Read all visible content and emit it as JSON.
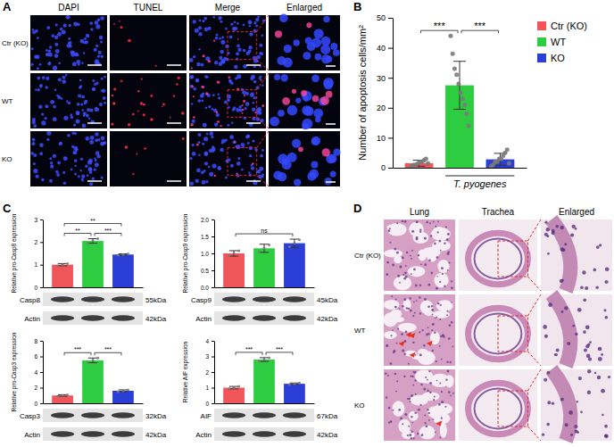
{
  "panel_labels": [
    "A",
    "B",
    "C",
    "D"
  ],
  "image_panels": {
    "A": {
      "columns": [
        "DAPI",
        "TUNEL",
        "Merge",
        "Enlarged"
      ],
      "rows": [
        "Ctr (KO)",
        "WT",
        "KO"
      ]
    },
    "D": {
      "columns": [
        "Lung",
        "Trachea",
        "Enlarged"
      ],
      "rows": [
        "Ctr (KO)",
        "WT",
        "KO"
      ]
    }
  },
  "chart_data": [
    {
      "type": "bar",
      "y_label": "Number of apoptosis cells/mm²",
      "x_label": "T. pyogenes",
      "x_label_span": [
        "WT",
        "KO"
      ],
      "categories": [
        "Ctr (KO)",
        "WT",
        "KO"
      ],
      "values": [
        1.5,
        27.5,
        2.8
      ],
      "errors": [
        1.0,
        8.0,
        2.0
      ],
      "points": [
        [
          0,
          0.5,
          1,
          1,
          1.5,
          2,
          2,
          2.5,
          3,
          1.5
        ],
        [
          44,
          38,
          33,
          31,
          28,
          25,
          23,
          21,
          18,
          14
        ],
        [
          0.5,
          1,
          2,
          2,
          3,
          3,
          4,
          5,
          6,
          1.5
        ]
      ],
      "colors": [
        "#f0555a",
        "#2ecc40",
        "#2b3fd6"
      ],
      "ylim": [
        0,
        50
      ],
      "yticks": [
        0,
        10,
        20,
        30,
        40,
        50
      ],
      "comparisons": [
        {
          "between": [
            0,
            1
          ],
          "text": "***"
        },
        {
          "between": [
            1,
            2
          ],
          "text": "***"
        }
      ],
      "legend": "right",
      "tick_labels": "y"
    },
    {
      "type": "bar",
      "y_label": "Relative pro-Casp8 expression",
      "categories": [
        null,
        null,
        null
      ],
      "values": [
        1.0,
        2.05,
        1.45
      ],
      "errors": [
        0.05,
        0.1,
        0.03
      ],
      "points": [
        [
          0.95,
          1.0,
          1.05
        ],
        [
          1.95,
          2.05,
          2.15
        ],
        [
          1.42,
          1.45,
          1.48
        ]
      ],
      "colors": [
        "#f0555a",
        "#2ecc40",
        "#2b3fd6"
      ],
      "ylim": [
        0,
        3
      ],
      "yticks": [
        0,
        1,
        2,
        3
      ],
      "comparisons": [
        {
          "between": [
            1,
            2
          ],
          "text": "***"
        },
        {
          "between": [
            0,
            1
          ],
          "text": "**"
        },
        {
          "between": [
            0,
            2
          ],
          "text": "**"
        }
      ],
      "blot": [
        {
          "label": "Casp8",
          "size": "55kDa"
        },
        {
          "label": "Actin",
          "size": "42kDa"
        }
      ],
      "tick_labels": "y"
    },
    {
      "type": "bar",
      "y_label": "Relative pro-Casp9 expression",
      "categories": [
        null,
        null,
        null
      ],
      "values": [
        1.0,
        1.15,
        1.3
      ],
      "errors": [
        0.08,
        0.12,
        0.12
      ],
      "points": [
        [
          0.92,
          1.0,
          1.08
        ],
        [
          1.05,
          1.15,
          1.25
        ],
        [
          1.2,
          1.3,
          1.4
        ]
      ],
      "colors": [
        "#f0555a",
        "#2ecc40",
        "#2b3fd6"
      ],
      "ylim": [
        0,
        2
      ],
      "yticks": [
        {
          "value": 0,
          "label": "0.0"
        },
        0.5,
        {
          "value": 1,
          "label": "1.0"
        },
        1.5,
        {
          "value": 2,
          "label": "2.0"
        }
      ],
      "comparisons": [
        {
          "between": [
            0,
            2
          ],
          "text": "ns"
        }
      ],
      "blot": [
        {
          "label": "Casp9",
          "size": "45kDa"
        },
        {
          "label": "Actin",
          "size": "42kDa"
        }
      ],
      "tick_labels": "y"
    },
    {
      "type": "bar",
      "y_label": "Relative pro-Casp3 expression",
      "categories": [
        null,
        null,
        null
      ],
      "values": [
        1.0,
        5.5,
        1.6
      ],
      "errors": [
        0.1,
        0.3,
        0.12
      ],
      "points": [
        [
          0.9,
          1.0,
          1.1
        ],
        [
          5.2,
          5.5,
          5.8
        ],
        [
          1.48,
          1.6,
          1.72
        ]
      ],
      "colors": [
        "#f0555a",
        "#2ecc40",
        "#2b3fd6"
      ],
      "ylim": [
        0,
        8
      ],
      "yticks": [
        0,
        2,
        4,
        6,
        8
      ],
      "comparisons": [
        {
          "between": [
            0,
            1
          ],
          "text": "***"
        },
        {
          "between": [
            1,
            2
          ],
          "text": "***"
        }
      ],
      "blot": [
        {
          "label": "Casp3",
          "size": "32kDa"
        },
        {
          "label": "Actin",
          "size": "42kDa"
        }
      ],
      "tick_labels": "y"
    },
    {
      "type": "bar",
      "y_label": "Relative AIF expression",
      "categories": [
        null,
        null,
        null
      ],
      "values": [
        1.0,
        2.8,
        1.25
      ],
      "errors": [
        0.08,
        0.12,
        0.05
      ],
      "points": [
        [
          0.92,
          1.0,
          1.08
        ],
        [
          2.68,
          2.8,
          2.92
        ],
        [
          1.2,
          1.25,
          1.3
        ]
      ],
      "colors": [
        "#f0555a",
        "#2ecc40",
        "#2b3fd6"
      ],
      "ylim": [
        0,
        4
      ],
      "yticks": [
        0,
        1,
        2,
        3,
        4
      ],
      "comparisons": [
        {
          "between": [
            0,
            1
          ],
          "text": "***"
        },
        {
          "between": [
            1,
            2
          ],
          "text": "***"
        }
      ],
      "blot": [
        {
          "label": "AIF",
          "size": "67kDa"
        },
        {
          "label": "Actin",
          "size": "42kDa"
        }
      ],
      "tick_labels": "y"
    }
  ]
}
